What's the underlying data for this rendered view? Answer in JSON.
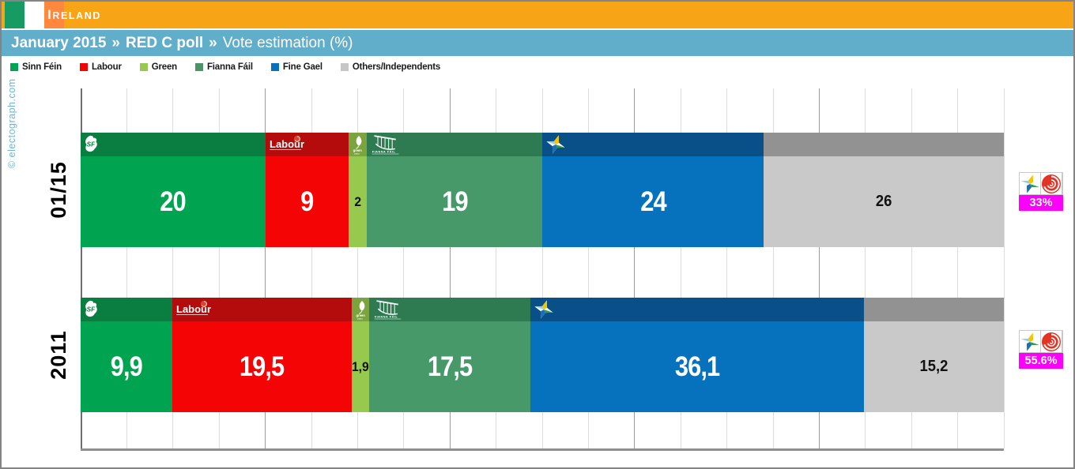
{
  "header": {
    "country": "Ireland",
    "bg_color": "#F7A417",
    "flag_colors": [
      "#169B62",
      "#FFFFFF",
      "#FF883E"
    ]
  },
  "subheader": {
    "bg_color": "#60AECA",
    "date_label": "January 2015",
    "separator": "»",
    "source_label": "RED C poll",
    "metric_label": "Vote estimation (%)"
  },
  "legend": {
    "items": [
      {
        "label": "Sinn Féin",
        "color": "#00A350"
      },
      {
        "label": "Labour",
        "color": "#F40404"
      },
      {
        "label": "Green",
        "color": "#97C94F"
      },
      {
        "label": "Fianna Fáil",
        "color": "#4A9467"
      },
      {
        "label": "Fine Gael",
        "color": "#0671BD"
      },
      {
        "label": "Others/Independents",
        "color": "#C6C6C6"
      }
    ]
  },
  "watermark": {
    "text": "© electograph.com",
    "color": "#6FB5D2"
  },
  "chart_data": {
    "type": "bar",
    "orientation": "horizontal-stacked",
    "title": "January 2015 » RED C poll » Vote estimation (%)",
    "x_axis": {
      "min": 0,
      "max": 100,
      "tick_step": 5,
      "major_step": 20,
      "gridlines": true
    },
    "categories": [
      "01/15",
      "2011"
    ],
    "parties": [
      {
        "name": "Sinn Féin",
        "color": "#00A350",
        "header_color": "#0A7E41",
        "text_color": "#ffffff",
        "label_style": "large-white",
        "icon": "sinn-fein-logo"
      },
      {
        "name": "Labour",
        "color": "#F40404",
        "header_color": "#B40C0C",
        "text_color": "#ffffff",
        "label_style": "large-white",
        "icon": "labour-logo"
      },
      {
        "name": "Green",
        "color": "#97C94F",
        "header_color": "#7BA33E",
        "text_color": "#111111",
        "label_style": "small-dark",
        "icon": "green-party-logo"
      },
      {
        "name": "Fianna Fáil",
        "color": "#47996A",
        "header_color": "#2E7B52",
        "text_color": "#ffffff",
        "label_style": "large-white",
        "icon": "fianna-fail-logo"
      },
      {
        "name": "Fine Gael",
        "color": "#0671BD",
        "header_color": "#094F88",
        "text_color": "#ffffff",
        "label_style": "large-white",
        "icon": "fine-gael-star-icon"
      },
      {
        "name": "Others/Independents",
        "color": "#C9C9C9",
        "header_color": "#929292",
        "text_color": "#111111",
        "label_style": "medium-dark",
        "icon": null
      }
    ],
    "rows": [
      {
        "label": "01/15",
        "segments": [
          {
            "party": "Sinn Féin",
            "value": 20,
            "display": "20"
          },
          {
            "party": "Labour",
            "value": 9,
            "display": "9"
          },
          {
            "party": "Green",
            "value": 2,
            "display": "2"
          },
          {
            "party": "Fianna Fáil",
            "value": 19,
            "display": "19"
          },
          {
            "party": "Fine Gael",
            "value": 24,
            "display": "24"
          },
          {
            "party": "Others/Independents",
            "value": 26,
            "display": "26"
          }
        ],
        "annotation": {
          "label": "33%",
          "bg": "#FB00FB",
          "icons": [
            "fine-gael-star-icon",
            "labour-rose-icon"
          ]
        }
      },
      {
        "label": "2011",
        "segments": [
          {
            "party": "Sinn Féin",
            "value": 9.9,
            "display": "9,9"
          },
          {
            "party": "Labour",
            "value": 19.5,
            "display": "19,5"
          },
          {
            "party": "Green",
            "value": 1.9,
            "display": "1,9"
          },
          {
            "party": "Fianna Fáil",
            "value": 17.5,
            "display": "17,5"
          },
          {
            "party": "Fine Gael",
            "value": 36.1,
            "display": "36,1"
          },
          {
            "party": "Others/Independents",
            "value": 15.2,
            "display": "15,2"
          }
        ],
        "annotation": {
          "label": "55.6%",
          "bg": "#FB00FB",
          "icons": [
            "fine-gael-star-icon",
            "labour-rose-icon"
          ]
        }
      }
    ]
  }
}
